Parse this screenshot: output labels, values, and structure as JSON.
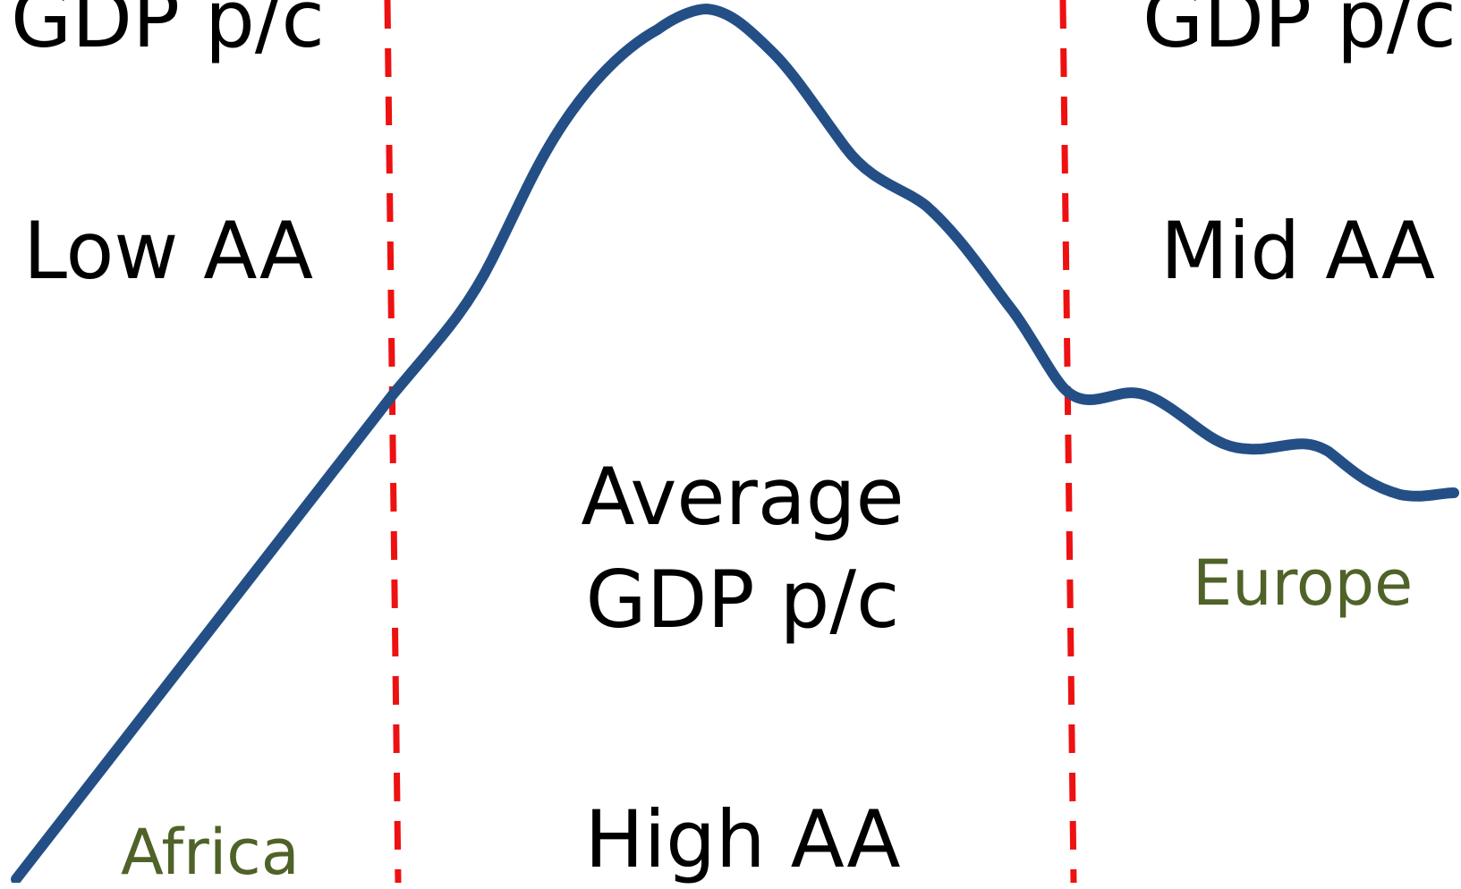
{
  "zones": {
    "left": {
      "gdp_label": "GDP p/c",
      "aa_label": "Low AA"
    },
    "middle": {
      "gdp_line1": "Average",
      "gdp_line2": "GDP p/c",
      "aa_label": "High AA"
    },
    "right": {
      "gdp_label": "GDP p/c",
      "aa_label": "Mid AA"
    }
  },
  "regions": {
    "left": "Africa",
    "right": "Europe"
  },
  "colors": {
    "curve": "#234f86",
    "divider": "#ee1111",
    "region_text": "#4f6228",
    "text": "#000000"
  }
}
